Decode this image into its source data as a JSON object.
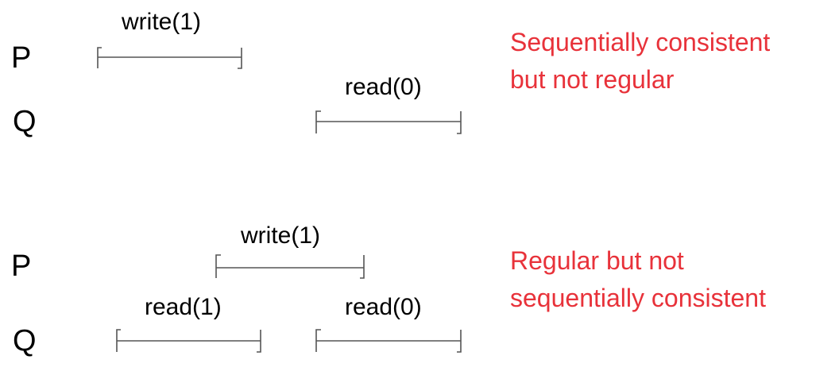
{
  "diagram1": {
    "process_p": "P",
    "process_q": "Q",
    "p_op": "write(1)",
    "q_op": "read(0)",
    "note_line1": "Sequentially consistent",
    "note_line2": "but not regular",
    "note_color": "#e8323a"
  },
  "diagram2": {
    "process_p": "P",
    "process_q": "Q",
    "p_op": "write(1)",
    "q_op1": "read(1)",
    "q_op2": "read(0)",
    "note_line1": "Regular but not",
    "note_line2": "sequentially consistent",
    "note_color": "#e8323a"
  }
}
